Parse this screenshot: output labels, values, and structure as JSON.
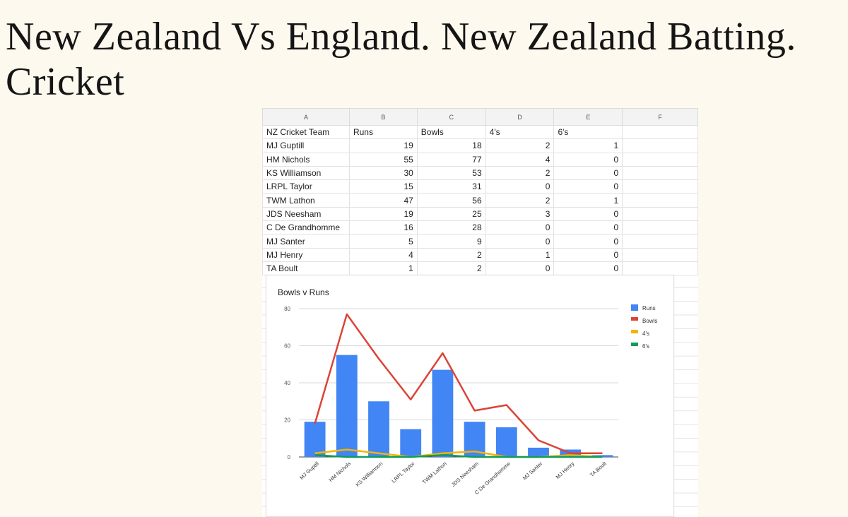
{
  "page": {
    "title": "New Zealand Vs England. New Zealand Batting. Cricket"
  },
  "sheet": {
    "col_letters": [
      "A",
      "B",
      "C",
      "D",
      "E",
      "F"
    ],
    "headers": [
      "NZ Cricket Team",
      "Runs",
      "Bowls",
      "4's",
      "6's"
    ],
    "rows": [
      [
        "MJ Guptill",
        "19",
        "18",
        "2",
        "1"
      ],
      [
        "HM Nichols",
        "55",
        "77",
        "4",
        "0"
      ],
      [
        "KS Williamson",
        "30",
        "53",
        "2",
        "0"
      ],
      [
        "LRPL Taylor",
        "15",
        "31",
        "0",
        "0"
      ],
      [
        "TWM Lathon",
        "47",
        "56",
        "2",
        "1"
      ],
      [
        "JDS Neesham",
        "19",
        "25",
        "3",
        "0"
      ],
      [
        "C De Grandhomme",
        "16",
        "28",
        "0",
        "0"
      ],
      [
        "MJ Santer",
        "5",
        "9",
        "0",
        "0"
      ],
      [
        "MJ Henry",
        "4",
        "2",
        "1",
        "0"
      ],
      [
        "TA Boult",
        "1",
        "2",
        "0",
        "0"
      ]
    ]
  },
  "chart_data": {
    "type": "bar",
    "title": "Bowls v Runs",
    "xlabel": "",
    "ylabel": "",
    "ylim": [
      0,
      80
    ],
    "yticks": [
      "0",
      "20",
      "40",
      "60",
      "80"
    ],
    "grid": true,
    "legend_position": "right",
    "categories": [
      "MJ Guptill",
      "HM Nichols",
      "KS Williamson",
      "LRPL Taylor",
      "TWM Lathon",
      "JDS Neesham",
      "C De Grandhomme",
      "MJ Santer",
      "MJ Henry",
      "TA Boult"
    ],
    "series": [
      {
        "name": "Runs",
        "kind": "bar",
        "color": "#4285f4",
        "values": [
          19,
          55,
          30,
          15,
          47,
          19,
          16,
          5,
          4,
          1
        ]
      },
      {
        "name": "Bowls",
        "kind": "line",
        "color": "#db4437",
        "values": [
          18,
          77,
          53,
          31,
          56,
          25,
          28,
          9,
          2,
          2
        ]
      },
      {
        "name": "4's",
        "kind": "line",
        "color": "#f4b400",
        "values": [
          2,
          4,
          2,
          0,
          2,
          3,
          0,
          0,
          1,
          0
        ]
      },
      {
        "name": "6's",
        "kind": "line",
        "color": "#0f9d58",
        "values": [
          1,
          0,
          0,
          0,
          1,
          0,
          0,
          0,
          0,
          0
        ]
      }
    ]
  }
}
